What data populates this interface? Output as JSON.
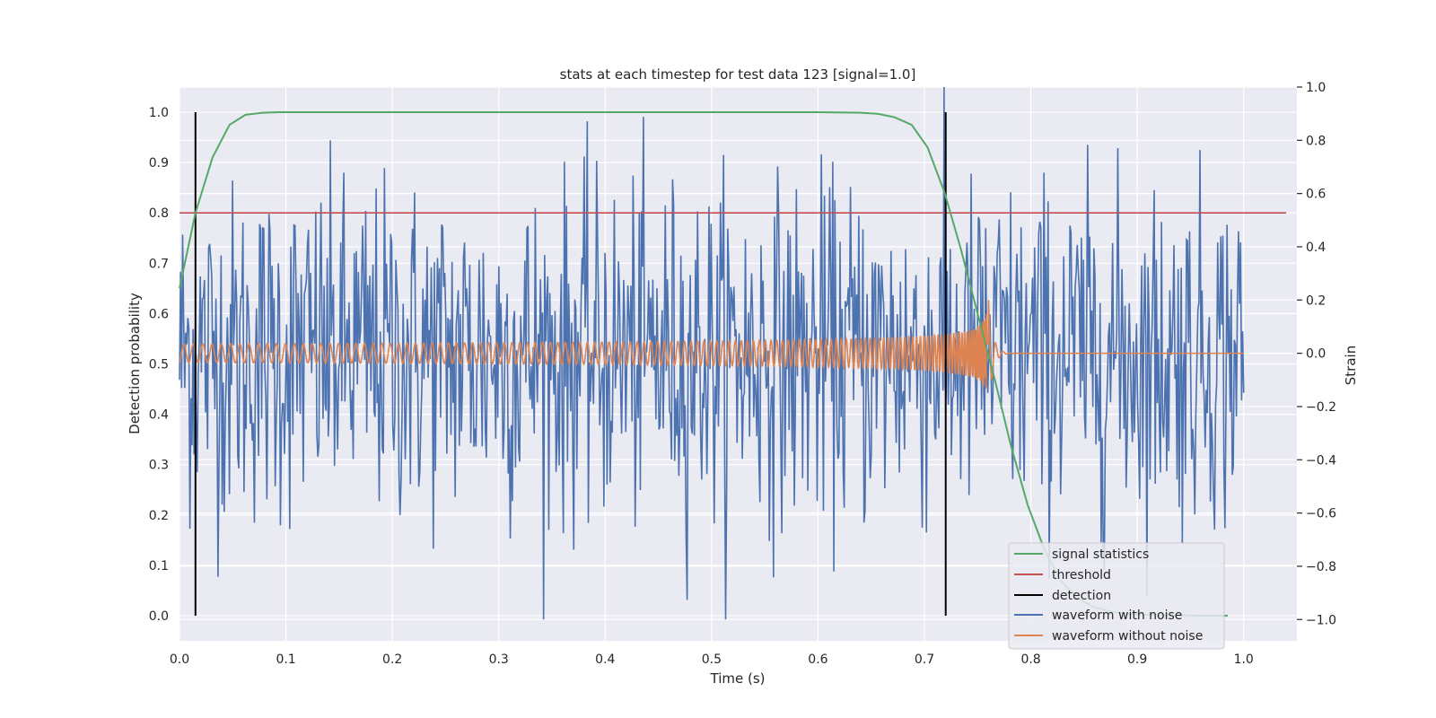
{
  "chart_data": {
    "type": "line",
    "title": "stats at each timestep for test data 123 [signal=1.0]",
    "xlabel": "Time (s)",
    "ylabel": "Detection probability",
    "ylabel_right": "Strain",
    "xlim": [
      0.0,
      1.05
    ],
    "ylim": [
      -0.05,
      1.05
    ],
    "ylim_right": [
      -1.08,
      1.0
    ],
    "x_ticks": [
      0.0,
      0.1,
      0.2,
      0.3,
      0.4,
      0.5,
      0.6,
      0.7,
      0.8,
      0.9,
      1.0
    ],
    "x_tick_labels": [
      "0.0",
      "0.1",
      "0.2",
      "0.3",
      "0.4",
      "0.5",
      "0.6",
      "0.7",
      "0.8",
      "0.9",
      "1.0"
    ],
    "y_ticks": [
      0.0,
      0.1,
      0.2,
      0.3,
      0.4,
      0.5,
      0.6,
      0.7,
      0.8,
      0.9,
      1.0
    ],
    "y_tick_labels": [
      "0.0",
      "0.1",
      "0.2",
      "0.3",
      "0.4",
      "0.5",
      "0.6",
      "0.7",
      "0.8",
      "0.9",
      "1.0"
    ],
    "y_right_ticks": [
      -1.0,
      -0.8,
      -0.6,
      -0.4,
      -0.2,
      0.0,
      0.2,
      0.4,
      0.6,
      0.8,
      1.0
    ],
    "y_right_tick_labels": [
      "−1.0",
      "−0.8",
      "−0.6",
      "−0.4",
      "−0.2",
      "0.0",
      "0.2",
      "0.4",
      "0.6",
      "0.8",
      "1.0"
    ],
    "grid": true,
    "legend_position": "lower-right",
    "series": [
      {
        "name": "signal statistics",
        "color": "#55a868",
        "axis": "left",
        "x": [
          0.0,
          0.015,
          0.031,
          0.047,
          0.062,
          0.078,
          0.094,
          0.2,
          0.4,
          0.6,
          0.64,
          0.656,
          0.672,
          0.688,
          0.703,
          0.719,
          0.734,
          0.75,
          0.766,
          0.781,
          0.797,
          0.813,
          0.828,
          0.844,
          0.859,
          0.875,
          0.891,
          0.906,
          0.922,
          0.938,
          0.953,
          0.969,
          0.985
        ],
        "y": [
          0.65,
          0.8,
          0.91,
          0.975,
          0.995,
          0.999,
          1.0,
          1.0,
          1.0,
          1.0,
          0.999,
          0.997,
          0.99,
          0.975,
          0.93,
          0.84,
          0.73,
          0.6,
          0.47,
          0.34,
          0.22,
          0.13,
          0.07,
          0.035,
          0.017,
          0.008,
          0.004,
          0.002,
          0.001,
          0.0005,
          0.0002,
          0.0001,
          0.0
        ]
      },
      {
        "name": "threshold",
        "color": "#c44e52",
        "axis": "left",
        "x": [
          0.0,
          1.04
        ],
        "y": [
          0.8,
          0.8
        ]
      },
      {
        "name": "detection",
        "color": "#000000",
        "axis": "left",
        "x": [
          0.015,
          0.72
        ],
        "y": [
          1.0,
          1.0
        ]
      },
      {
        "name": "waveform with noise",
        "color": "#4c72b0",
        "axis": "right",
        "x_range": [
          0.0,
          1.0
        ],
        "samples": 1024,
        "amplitude_range": [
          -1.0,
          1.0
        ]
      },
      {
        "name": "waveform without noise",
        "color": "#dd8452",
        "axis": "right",
        "x_range": [
          0.0,
          1.0
        ],
        "merger_time": 0.76,
        "amplitude_range": [
          -0.2,
          0.28
        ]
      }
    ]
  }
}
